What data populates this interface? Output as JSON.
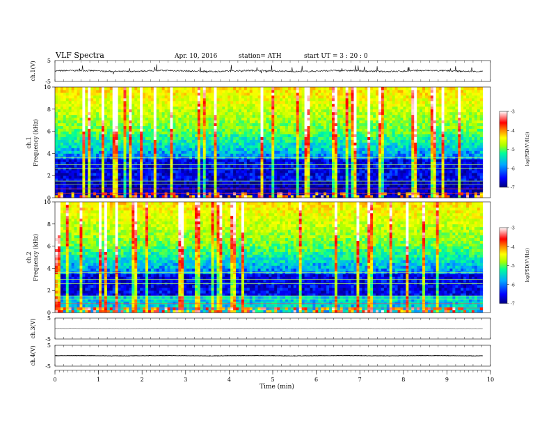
{
  "header": {
    "title": "VLF Spectra",
    "date": "Apr. 10, 2016",
    "station": "station= ATH",
    "start": "start UT = 3 : 20 : 0"
  },
  "xaxis": {
    "label": "Time (min)",
    "range": [
      0,
      10
    ],
    "ticks": [
      "0",
      "1",
      "2",
      "3",
      "4",
      "5",
      "6",
      "7",
      "8",
      "9",
      "10"
    ]
  },
  "panels": {
    "ch1v": {
      "ylabel": "ch.1(V)",
      "ticks": [
        "5",
        "-5"
      ],
      "ylim": [
        -5,
        5
      ],
      "mean": 0,
      "noise": 0.35
    },
    "ch1s": {
      "ylabel_top": "ch.1",
      "ylabel": "Frequency (kHz)",
      "ticks": [
        "0",
        "2",
        "4",
        "6",
        "8",
        "10"
      ],
      "ylim": [
        0,
        10
      ]
    },
    "ch2s": {
      "ylabel_top": "ch.2",
      "ylabel": "Frequency (kHz)",
      "ticks": [
        "0",
        "2",
        "4",
        "6",
        "8",
        "10"
      ],
      "ylim": [
        0,
        10
      ]
    },
    "ch3v": {
      "ylabel": "ch.3(V)",
      "ticks": [
        "5",
        "-5"
      ],
      "ylim": [
        -5,
        5
      ],
      "mean": 0,
      "noise": 0.05
    },
    "ch4v": {
      "ylabel": "ch.4(V)",
      "ticks": [
        "5",
        "-5"
      ],
      "ylim": [
        -5,
        5
      ],
      "mean": 0,
      "noise": 0.12
    }
  },
  "colorbar": {
    "label": "log(PSD(V²/Hz))",
    "range": [
      -7,
      -3
    ],
    "ticks": [
      "-3",
      "-4",
      "-5",
      "-6",
      "-7"
    ],
    "colors": [
      "#000080",
      "#0000ff",
      "#00aaff",
      "#00ff99",
      "#aaff00",
      "#ffff00",
      "#ff8800",
      "#ff0000",
      "#ffffff"
    ]
  },
  "chart_data": [
    {
      "type": "line",
      "title": "VLF Spectra",
      "xlabel": "Time (min)",
      "ylabel": "ch.1(V)",
      "xlim": [
        0,
        10
      ],
      "ylim": [
        -5,
        5
      ],
      "data_extent_min": 9.82
    },
    {
      "type": "heatmap",
      "xlabel": "Time (min)",
      "ylabel": "Frequency (kHz)",
      "xlim": [
        0,
        10
      ],
      "ylim": [
        0,
        10
      ],
      "colorbar_range": [
        -7,
        -3
      ]
    },
    {
      "type": "heatmap",
      "xlabel": "Time (min)",
      "ylabel": "Frequency (kHz)",
      "xlim": [
        0,
        10
      ],
      "ylim": [
        0,
        10
      ],
      "colorbar_range": [
        -7,
        -3
      ]
    },
    {
      "type": "line",
      "xlabel": "Time (min)",
      "ylabel": "ch.3(V)",
      "xlim": [
        0,
        10
      ],
      "ylim": [
        -5,
        5
      ]
    },
    {
      "type": "line",
      "xlabel": "Time (min)",
      "ylabel": "ch.4(V)",
      "xlim": [
        0,
        10
      ],
      "ylim": [
        -5,
        5
      ]
    }
  ]
}
